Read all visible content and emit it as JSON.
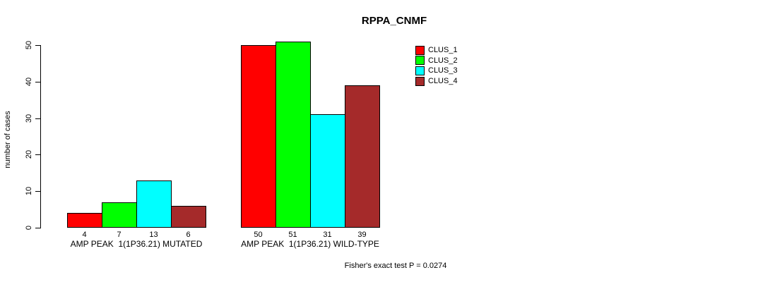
{
  "chart_data": {
    "type": "bar",
    "title": "RPPA_CNMF",
    "ylabel": "number of cases",
    "xlabel": "",
    "ylim": [
      0,
      50
    ],
    "yticks": [
      0,
      10,
      20,
      30,
      40,
      50
    ],
    "grid": false,
    "legend_position": "top-right",
    "categories": [
      "AMP PEAK  1(1P36.21) MUTATED",
      "AMP PEAK  1(1P36.21) WILD-TYPE"
    ],
    "series": [
      {
        "name": "CLUS_1",
        "color": "#FF0000",
        "values": [
          4,
          50
        ]
      },
      {
        "name": "CLUS_2",
        "color": "#00FF00",
        "values": [
          7,
          51
        ]
      },
      {
        "name": "CLUS_3",
        "color": "#00FFFF",
        "values": [
          13,
          31
        ]
      },
      {
        "name": "CLUS_4",
        "color": "#A52A2A",
        "values": [
          6,
          39
        ]
      }
    ],
    "bar_value_labels": [
      [
        "4",
        "7",
        "13",
        "6"
      ],
      [
        "50",
        "51",
        "31",
        "39"
      ]
    ],
    "annotation": "Fisher's exact test P = 0.0274",
    "bar_border_color": "#000000"
  }
}
